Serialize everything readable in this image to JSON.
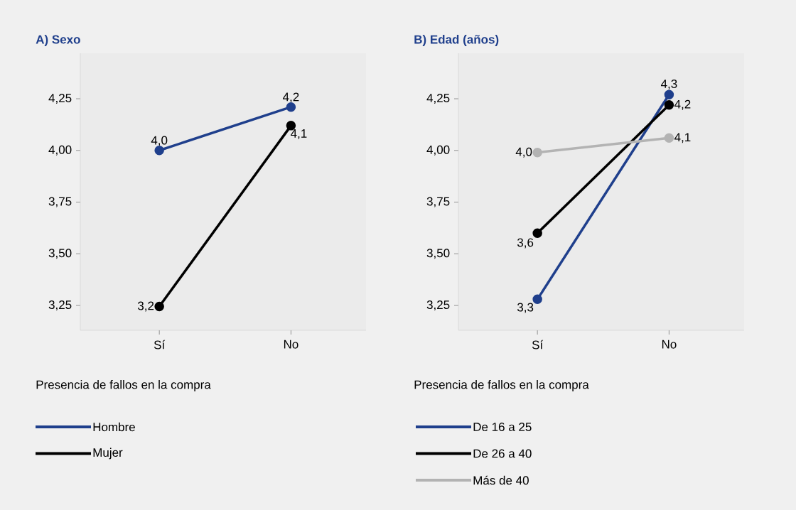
{
  "chart_data": [
    {
      "type": "line",
      "title": "A) Sexo",
      "xlabel": "Presencia de fallos en la compra",
      "categories": [
        "Sí",
        "No"
      ],
      "ylim": [
        3.13,
        4.47
      ],
      "yticks": [
        {
          "value": 3.25,
          "label": "3,25"
        },
        {
          "value": 3.5,
          "label": "3,50"
        },
        {
          "value": 3.75,
          "label": "3,75"
        },
        {
          "value": 4.0,
          "label": "4,00"
        },
        {
          "value": 4.25,
          "label": "4,25"
        }
      ],
      "grid": false,
      "legend": "bottom",
      "marker": "circle",
      "series": [
        {
          "name": "Hombre",
          "color": "#1f3f8c",
          "values": [
            4.0,
            4.21
          ],
          "value_labels": [
            "4,0",
            "4,2"
          ]
        },
        {
          "name": "Mujer",
          "color": "#000000",
          "values": [
            3.245,
            4.12
          ],
          "value_labels": [
            "3,2",
            "4,1"
          ]
        }
      ]
    },
    {
      "type": "line",
      "title": "B) Edad (años)",
      "xlabel": "Presencia de fallos en la compra",
      "categories": [
        "Sí",
        "No"
      ],
      "ylim": [
        3.13,
        4.47
      ],
      "yticks": [
        {
          "value": 3.25,
          "label": "3,25"
        },
        {
          "value": 3.5,
          "label": "3,50"
        },
        {
          "value": 3.75,
          "label": "3,75"
        },
        {
          "value": 4.0,
          "label": "4,00"
        },
        {
          "value": 4.25,
          "label": "4,25"
        }
      ],
      "grid": false,
      "legend": "bottom",
      "marker": "circle",
      "series": [
        {
          "name": "De 16 a 25",
          "color": "#1f3f8c",
          "values": [
            3.28,
            4.27
          ],
          "value_labels": [
            "3,3",
            "4,3"
          ]
        },
        {
          "name": "De 26 a 40",
          "color": "#000000",
          "values": [
            3.6,
            4.22
          ],
          "value_labels": [
            "3,6",
            "4,2"
          ]
        },
        {
          "name": "Más de 40",
          "color": "#b3b3b3",
          "values": [
            3.99,
            4.06
          ],
          "value_labels": [
            "4,0",
            "4,1"
          ]
        }
      ]
    }
  ]
}
